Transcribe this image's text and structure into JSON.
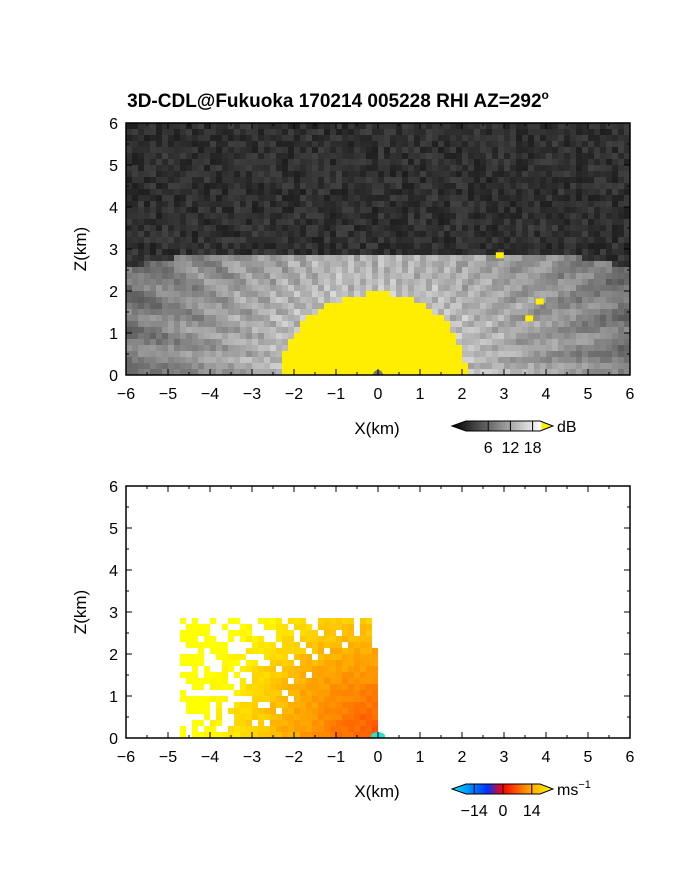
{
  "figure_title": "3D-CDL@Fukuoka 170214 005228 RHI AZ=292",
  "title_superscript": "o",
  "chart_data": [
    {
      "type": "heatmap",
      "panel": "top",
      "variable_unit": "dB",
      "xlabel": "X(km)",
      "ylabel": "Z(km)",
      "xlim": [
        -6,
        6
      ],
      "ylim": [
        0,
        6
      ],
      "xticks": [
        "-6",
        "-5",
        "-4",
        "-3",
        "-2",
        "-1",
        "0",
        "1",
        "2",
        "3",
        "4",
        "5",
        "6"
      ],
      "yticks": [
        "0",
        "1",
        "2",
        "3",
        "4",
        "5",
        "6"
      ],
      "colorbar": {
        "unit_label": "dB",
        "ticks": [
          "6",
          "12",
          "18"
        ],
        "tick_values": [
          6,
          12,
          18
        ],
        "range": [
          0,
          20
        ],
        "colors": [
          "#000000",
          "#ffffff",
          "#ffee00"
        ]
      },
      "structures": {
        "echo_top_km": 2.85,
        "strong_core": {
          "x_range": [
            -2.3,
            2.1
          ],
          "top_km": 1.95,
          "value": 20
        },
        "background_noise": "dark gray",
        "isolated_echoes": [
          {
            "x": 2.9,
            "z": 2.85
          },
          {
            "x": 3.85,
            "z": 1.75
          },
          {
            "x": 3.6,
            "z": 1.35
          }
        ]
      }
    },
    {
      "type": "heatmap",
      "panel": "bottom",
      "variable_unit": "ms",
      "unit_superscript": "−1",
      "xlabel": "X(km)",
      "ylabel": "Z(km)",
      "xlim": [
        -6,
        6
      ],
      "ylim": [
        0,
        6
      ],
      "xticks": [
        "-6",
        "-5",
        "-4",
        "-3",
        "-2",
        "-1",
        "0",
        "1",
        "2",
        "3",
        "4",
        "5",
        "6"
      ],
      "yticks": [
        "0",
        "1",
        "2",
        "3",
        "4",
        "5",
        "6"
      ],
      "colorbar": {
        "unit_label": "ms",
        "ticks": [
          "−14",
          "0",
          "14"
        ],
        "tick_values": [
          -14,
          0,
          14
        ],
        "range": [
          -18,
          18
        ],
        "colors": [
          "#00e5ff",
          "#0033ff",
          "#ff0000",
          "#ffff00"
        ]
      },
      "structures": {
        "echo_top_km": 2.85,
        "negative_side_x": [
          0,
          6
        ],
        "positive_side_x": [
          -5,
          0
        ],
        "max_speed": 16
      }
    }
  ]
}
